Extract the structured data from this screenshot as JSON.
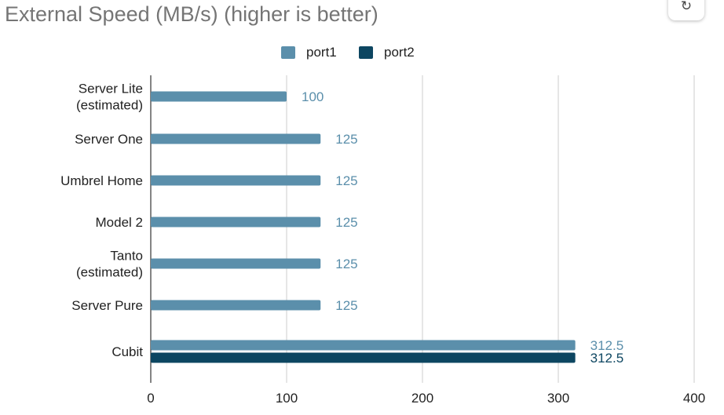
{
  "title": "External Speed (MB/s) (higher is better)",
  "refresh_icon": "refresh-icon",
  "refresh_glyph": "↻",
  "chart_data": {
    "type": "bar",
    "orientation": "horizontal",
    "title": "External Speed (MB/s) (higher is better)",
    "categories": [
      [
        "Server Lite",
        "(estimated)"
      ],
      [
        "Server One"
      ],
      [
        "Umbrel Home"
      ],
      [
        "Model 2"
      ],
      [
        "Tanto",
        "(estimated)"
      ],
      [
        "Server Pure"
      ],
      [
        "Cubit"
      ]
    ],
    "series": [
      {
        "name": "port1",
        "color": "#5b8fab",
        "values": [
          100,
          125,
          125,
          125,
          125,
          125,
          312.5
        ]
      },
      {
        "name": "port2",
        "color": "#0d4661",
        "values": [
          null,
          null,
          null,
          null,
          null,
          null,
          312.5
        ]
      }
    ],
    "data_labels": [
      [
        "100",
        "125",
        "125",
        "125",
        "125",
        "125",
        "312.5"
      ],
      [
        null,
        null,
        null,
        null,
        null,
        null,
        "312.5"
      ]
    ],
    "xlim": [
      0,
      400
    ],
    "xticks": [
      "0",
      "100",
      "200",
      "300",
      "400"
    ],
    "grid": true,
    "legend_position": "top"
  }
}
